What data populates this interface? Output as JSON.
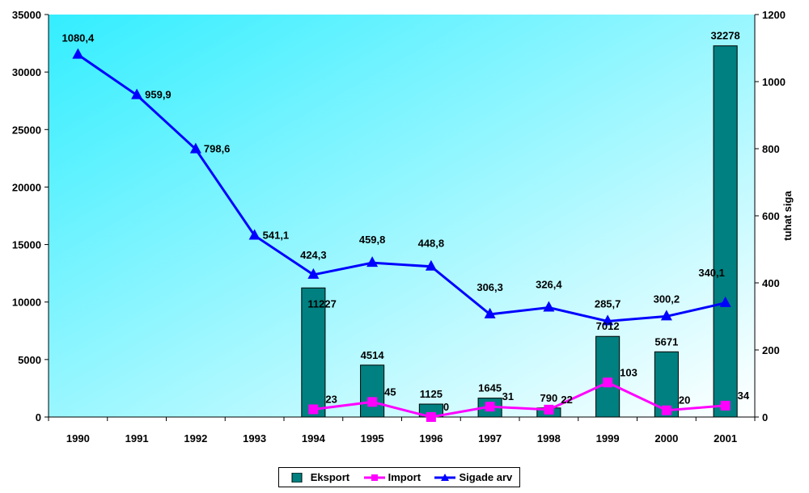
{
  "colors": {
    "eksport": "#008080",
    "import": "#FF00FF",
    "sigade": "#0000FF",
    "plot_gradient_start": "#33EEFF",
    "plot_gradient_end": "#FFFFFF"
  },
  "chart_data": {
    "type": "bar+line",
    "categories": [
      "1990",
      "1991",
      "1992",
      "1993",
      "1994",
      "1995",
      "1996",
      "1997",
      "1998",
      "1999",
      "2000",
      "2001"
    ],
    "series": [
      {
        "name": "Eksport",
        "type": "bar",
        "axis": "left",
        "values": [
          null,
          null,
          null,
          null,
          11227,
          4514,
          1125,
          1645,
          790,
          7012,
          5671,
          32278
        ],
        "labels": [
          "",
          "",
          "",
          "",
          "11227",
          "4514",
          "1125",
          "1645",
          "790",
          "7012",
          "5671",
          "32278"
        ]
      },
      {
        "name": "Import",
        "type": "line",
        "axis": "right",
        "marker": "square",
        "values": [
          null,
          null,
          null,
          null,
          23,
          45,
          0,
          31,
          22,
          103,
          20,
          34
        ],
        "labels": [
          "",
          "",
          "",
          "",
          "23",
          "45",
          "0",
          "31",
          "22",
          "103",
          "20",
          "34"
        ]
      },
      {
        "name": "Sigade arv",
        "type": "line",
        "axis": "right",
        "marker": "triangle",
        "values": [
          1080.4,
          959.9,
          798.6,
          541.1,
          424.3,
          459.8,
          448.8,
          306.3,
          326.4,
          285.7,
          300.2,
          340.1
        ],
        "labels": [
          "1080,4",
          "959,9",
          "798,6",
          "541,1",
          "424,3",
          "459,8",
          "448,8",
          "306,3",
          "326,4",
          "285,7",
          "300,2",
          "340,1"
        ]
      }
    ],
    "y_left": {
      "lim": [
        0,
        35000
      ],
      "ticks": [
        "0",
        "5000",
        "10000",
        "15000",
        "20000",
        "25000",
        "30000",
        "35000"
      ],
      "label": ""
    },
    "y_right": {
      "lim": [
        0,
        1200
      ],
      "ticks": [
        "0",
        "200",
        "400",
        "600",
        "800",
        "1000",
        "1200"
      ],
      "label": "tuhat siga"
    },
    "legend": {
      "position": "bottom",
      "entries": [
        "Eksport",
        "Import",
        "Sigade arv"
      ]
    }
  }
}
